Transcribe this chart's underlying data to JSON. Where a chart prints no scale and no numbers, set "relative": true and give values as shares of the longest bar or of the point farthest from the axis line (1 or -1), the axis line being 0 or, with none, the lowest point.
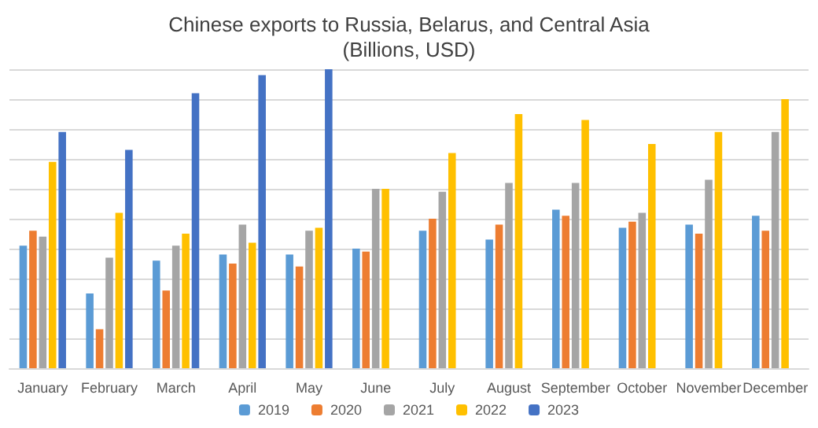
{
  "chart_data": {
    "type": "bar",
    "title": "Chinese exports to Russia, Belarus, and Central Asia",
    "subtitle": "(Billions, USD)",
    "relative": true,
    "grid": "y",
    "legend": "bottom",
    "categories": [
      "January",
      "February",
      "March",
      "April",
      "May",
      "June",
      "July",
      "August",
      "September",
      "October",
      "November",
      "December"
    ],
    "series": [
      {
        "name": "2019",
        "color": "#5b9bd5",
        "values": [
          0.41,
          0.25,
          0.36,
          0.38,
          0.38,
          0.4,
          0.46,
          0.43,
          0.53,
          0.47,
          0.48,
          0.51
        ]
      },
      {
        "name": "2020",
        "color": "#ed7d31",
        "values": [
          0.46,
          0.13,
          0.26,
          0.35,
          0.34,
          0.39,
          0.5,
          0.48,
          0.51,
          0.49,
          0.45,
          0.46
        ]
      },
      {
        "name": "2021",
        "color": "#a5a5a5",
        "values": [
          0.44,
          0.37,
          0.41,
          0.48,
          0.46,
          0.6,
          0.59,
          0.62,
          0.62,
          0.52,
          0.63,
          0.79
        ]
      },
      {
        "name": "2022",
        "color": "#ffc000",
        "values": [
          0.69,
          0.52,
          0.45,
          0.42,
          0.47,
          0.6,
          0.72,
          0.85,
          0.83,
          0.75,
          0.79,
          0.9
        ]
      },
      {
        "name": "2023",
        "color": "#4472c4",
        "values": [
          0.79,
          0.73,
          0.92,
          0.98,
          1,
          null,
          null,
          null,
          null,
          null,
          null,
          null
        ]
      }
    ]
  }
}
